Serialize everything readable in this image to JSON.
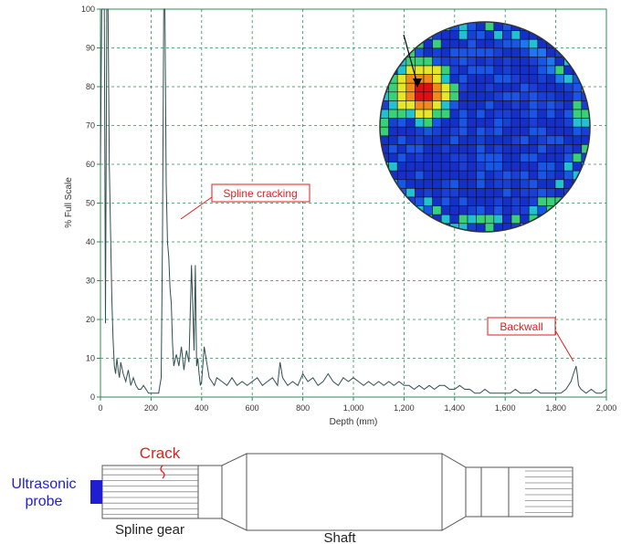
{
  "chart_data": {
    "type": "line",
    "title": "",
    "xlabel": "Depth (mm)",
    "ylabel": "% Full Scale",
    "xlim": [
      0,
      2000
    ],
    "ylim": [
      0,
      100
    ],
    "grid": true,
    "x_ticks": [
      "0",
      "200",
      "400",
      "600",
      "800",
      "1,000",
      "1,200",
      "1,400",
      "1,600",
      "1,800",
      "2,000"
    ],
    "y_ticks": [
      "0",
      "10",
      "20",
      "30",
      "40",
      "50",
      "60",
      "70",
      "80",
      "90",
      "100"
    ],
    "colors": {
      "trace": "#2f4f4f",
      "grid": "#2e8b57",
      "annotation": "#e01e1e"
    },
    "series": [
      {
        "x": [
          0,
          5,
          10,
          15,
          20,
          25,
          30,
          35,
          40,
          45,
          50,
          55,
          60,
          65,
          70,
          75,
          80,
          90,
          100,
          110,
          120,
          130,
          140,
          150,
          160,
          170,
          180,
          190,
          200,
          210,
          220,
          230,
          240,
          245,
          250,
          255,
          260,
          265,
          270,
          275,
          280,
          285,
          290,
          300,
          310,
          320,
          330,
          340,
          350,
          360,
          370,
          375,
          380,
          385,
          390,
          395,
          400,
          410,
          420,
          430,
          440,
          450,
          460,
          480,
          500,
          520,
          540,
          560,
          580,
          600,
          620,
          640,
          660,
          680,
          700,
          710,
          720,
          740,
          760,
          780,
          800,
          820,
          840,
          860,
          880,
          900,
          920,
          940,
          960,
          980,
          1000,
          1020,
          1040,
          1060,
          1080,
          1100,
          1120,
          1140,
          1160,
          1180,
          1200,
          1220,
          1240,
          1260,
          1280,
          1300,
          1320,
          1340,
          1360,
          1380,
          1400,
          1420,
          1440,
          1460,
          1480,
          1500,
          1520,
          1540,
          1560,
          1580,
          1600,
          1620,
          1640,
          1660,
          1680,
          1700,
          1720,
          1740,
          1760,
          1780,
          1800,
          1820,
          1840,
          1860,
          1870,
          1880,
          1885,
          1890,
          1900,
          1920,
          1940,
          1960,
          1980,
          2000
        ],
        "y": [
          60,
          100,
          100,
          100,
          19,
          100,
          100,
          60,
          42,
          25,
          15,
          8,
          6,
          10,
          7,
          5,
          9,
          6,
          4,
          7,
          3,
          5,
          3,
          2,
          2,
          3,
          2,
          1,
          1,
          1,
          1,
          1,
          5,
          40,
          100,
          100,
          55,
          40,
          36,
          28,
          24,
          14,
          8,
          11,
          8,
          13,
          7,
          12,
          9,
          34,
          12,
          34,
          8,
          10,
          6,
          3,
          4,
          13,
          9,
          5,
          4,
          3,
          5,
          4,
          3,
          5,
          3,
          4,
          3,
          4,
          5,
          3,
          4,
          5,
          3,
          9,
          5,
          3,
          4,
          3,
          6,
          4,
          5,
          3,
          4,
          6,
          4,
          3,
          5,
          4,
          5,
          4,
          3,
          4,
          3,
          4,
          3,
          4,
          3,
          4,
          3,
          3,
          2,
          3,
          2,
          3,
          2,
          3,
          3,
          2,
          2,
          3,
          2,
          2,
          1,
          1,
          2,
          1,
          1,
          1,
          1,
          1,
          2,
          1,
          1,
          1,
          2,
          1,
          1,
          1,
          1,
          1,
          2,
          4,
          6,
          8,
          6,
          3,
          2,
          1,
          2,
          1,
          1,
          2
        ]
      }
    ],
    "annotations": [
      {
        "label": "Spline cracking",
        "target": [
          340,
          45
        ]
      },
      {
        "label": "Backwall",
        "target": [
          1890,
          9
        ]
      }
    ],
    "inset_image": "C-scan amplitude map with red indication"
  },
  "diagram": {
    "crack_label": "Crack",
    "probe_label": "Ultrasonic\nprobe",
    "probe_label_line1": "Ultrasonic",
    "probe_label_line2": "probe",
    "spline_label": "Spline gear",
    "shaft_label": "Shaft",
    "colors": {
      "probe": "#1f1fd1",
      "crack": "#e01e1e",
      "outline": "#333333"
    }
  }
}
